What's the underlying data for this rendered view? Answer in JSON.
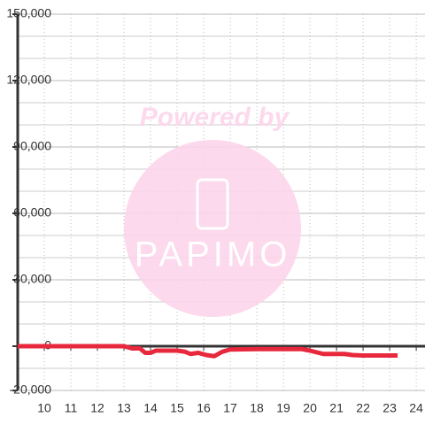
{
  "chart_data": {
    "type": "line",
    "x": [
      9,
      13,
      13.3,
      13.6,
      13.8,
      14,
      14.2,
      15,
      15.3,
      15.5,
      15.8,
      16.1,
      16.4,
      16.7,
      17,
      18,
      19,
      19.7,
      20,
      20.5,
      21,
      21.3,
      21.6,
      22,
      23.3
    ],
    "series": [
      {
        "color": "#e8283c",
        "values": [
          0,
          0,
          -1000,
          -1000,
          -3000,
          -3000,
          -2000,
          -2000,
          -2500,
          -3500,
          -3000,
          -4000,
          -4500,
          -2500,
          -1500,
          -1300,
          -1300,
          -1300,
          -2000,
          -3500,
          -3500,
          -3500,
          -4000,
          -4200,
          -4200
        ]
      }
    ],
    "xlim": [
      9,
      24.33
    ],
    "xticks": [
      10,
      11,
      12,
      13,
      14,
      15,
      16,
      17,
      18,
      19,
      20,
      21,
      22,
      23,
      24
    ],
    "ylim": [
      -20000,
      150000
    ],
    "yticks": [
      {
        "value": -20000,
        "label": "-20,000"
      },
      0,
      {
        "value": 30000,
        "label": "30,000"
      },
      {
        "value": 60000,
        "label": "60,000"
      },
      {
        "value": 90000,
        "label": "90,000"
      },
      {
        "value": 120000,
        "label": "120,000"
      },
      {
        "value": 150000,
        "label": "150,000"
      }
    ],
    "minor_yticks": [
      -10000,
      10000,
      20000,
      40000,
      50000,
      70000,
      80000,
      100000,
      110000,
      130000,
      140000
    ],
    "grid": true,
    "watermark": {
      "line1": "Powered by",
      "line2": "PAPIMO"
    }
  }
}
